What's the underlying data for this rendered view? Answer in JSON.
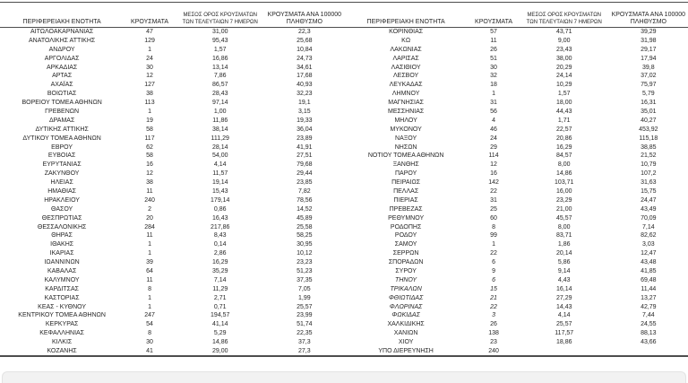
{
  "columns": {
    "region": "ΠΕΡΙΦΕΡΕΙΑΚΗ ΕΝΟΤΗΤΑ",
    "cases": "ΚΡΟΥΣΜΑΤΑ",
    "avg7_line1": "ΜΕΣΟΣ ΟΡΟΣ ΚΡΟΥΣΜΑΤΩΝ",
    "avg7_line2": "ΤΩΝ ΤΕΛΕΥΤΑΙΩΝ 7 ΗΜΕΡΩΝ",
    "per100k_line1": "ΚΡΟΥΣΜΑΤΑ ΑΝΑ 100000",
    "per100k_line2": "ΠΛΗΘΥΣΜΟ"
  },
  "left_table": {
    "rows": [
      {
        "region": "ΑΙΤΩΛΟΑΚΑΡΝΑΝΙΑΣ",
        "cases": "47",
        "avg7": "31,00",
        "per100k": "22,3"
      },
      {
        "region": "ΑΝΑΤΟΛΙΚΗΣ ΑΤΤΙΚΗΣ",
        "cases": "129",
        "avg7": "95,43",
        "per100k": "25,68"
      },
      {
        "region": "ΑΝΔΡΟΥ",
        "cases": "1",
        "avg7": "1,57",
        "per100k": "10,84"
      },
      {
        "region": "ΑΡΓΟΛΙΔΑΣ",
        "cases": "24",
        "avg7": "16,86",
        "per100k": "24,73"
      },
      {
        "region": "ΑΡΚΑΔΙΑΣ",
        "cases": "30",
        "avg7": "13,14",
        "per100k": "34,61"
      },
      {
        "region": "ΑΡΤΑΣ",
        "cases": "12",
        "avg7": "7,86",
        "per100k": "17,68"
      },
      {
        "region": "ΑΧΑΪΑΣ",
        "cases": "127",
        "avg7": "86,57",
        "per100k": "40,93"
      },
      {
        "region": "ΒΟΙΩΤΙΑΣ",
        "cases": "38",
        "avg7": "28,43",
        "per100k": "32,23"
      },
      {
        "region": "ΒΟΡΕΙΟΥ ΤΟΜΕΑ ΑΘΗΝΩΝ",
        "cases": "113",
        "avg7": "97,14",
        "per100k": "19,1"
      },
      {
        "region": "ΓΡΕΒΕΝΩΝ",
        "cases": "1",
        "avg7": "1,00",
        "per100k": "3,15"
      },
      {
        "region": "ΔΡΑΜΑΣ",
        "cases": "19",
        "avg7": "11,86",
        "per100k": "19,33"
      },
      {
        "region": "ΔΥΤΙΚΗΣ ΑΤΤΙΚΗΣ",
        "cases": "58",
        "avg7": "38,14",
        "per100k": "36,04"
      },
      {
        "region": "ΔΥΤΙΚΟΥ ΤΟΜΕΑ ΑΘΗΝΩΝ",
        "cases": "117",
        "avg7": "111,29",
        "per100k": "23,89"
      },
      {
        "region": "ΕΒΡΟΥ",
        "cases": "62",
        "avg7": "28,14",
        "per100k": "41,91"
      },
      {
        "region": "ΕΥΒΟΙΑΣ",
        "cases": "58",
        "avg7": "54,00",
        "per100k": "27,51"
      },
      {
        "region": "ΕΥΡΥΤΑΝΙΑΣ",
        "cases": "16",
        "avg7": "4,14",
        "per100k": "79,68"
      },
      {
        "region": "ΖΑΚΥΝΘΟΥ",
        "cases": "12",
        "avg7": "11,57",
        "per100k": "29,44"
      },
      {
        "region": "ΗΛΕΙΑΣ",
        "cases": "38",
        "avg7": "19,14",
        "per100k": "23,85"
      },
      {
        "region": "ΗΜΑΘΙΑΣ",
        "cases": "11",
        "avg7": "15,43",
        "per100k": "7,82"
      },
      {
        "region": "ΗΡΑΚΛΕΙΟΥ",
        "cases": "240",
        "avg7": "179,14",
        "per100k": "78,56"
      },
      {
        "region": "ΘΑΣΟΥ",
        "cases": "2",
        "avg7": "0,86",
        "per100k": "14,52"
      },
      {
        "region": "ΘΕΣΠΡΩΤΙΑΣ",
        "cases": "20",
        "avg7": "16,43",
        "per100k": "45,89"
      },
      {
        "region": "ΘΕΣΣΑΛΟΝΙΚΗΣ",
        "cases": "284",
        "avg7": "217,86",
        "per100k": "25,58"
      },
      {
        "region": "ΘΗΡΑΣ",
        "cases": "11",
        "avg7": "8,43",
        "per100k": "58,25"
      },
      {
        "region": "ΙΘΑΚΗΣ",
        "cases": "1",
        "avg7": "0,14",
        "per100k": "30,95"
      },
      {
        "region": "ΙΚΑΡΙΑΣ",
        "cases": "1",
        "avg7": "2,86",
        "per100k": "10,12"
      },
      {
        "region": "ΙΩΑΝΝΙΝΩΝ",
        "cases": "39",
        "avg7": "16,29",
        "per100k": "23,23"
      },
      {
        "region": "ΚΑΒΑΛΑΣ",
        "cases": "64",
        "avg7": "35,29",
        "per100k": "51,23"
      },
      {
        "region": "ΚΑΛΥΜΝΟΥ",
        "cases": "11",
        "avg7": "7,14",
        "per100k": "37,35"
      },
      {
        "region": "ΚΑΡΔΙΤΣΑΣ",
        "cases": "8",
        "avg7": "11,29",
        "per100k": "7,05"
      },
      {
        "region": "ΚΑΣΤΟΡΙΑΣ",
        "cases": "1",
        "avg7": "2,71",
        "per100k": "1,99"
      },
      {
        "region": "ΚΕΑΣ - ΚΥΘΝΟΥ",
        "cases": "1",
        "avg7": "0,71",
        "per100k": "25,57"
      },
      {
        "region": "ΚΕΝΤΡΙΚΟΥ ΤΟΜΕΑ ΑΘΗΝΩΝ",
        "cases": "247",
        "avg7": "194,57",
        "per100k": "23,99"
      },
      {
        "region": "ΚΕΡΚΥΡΑΣ",
        "cases": "54",
        "avg7": "41,14",
        "per100k": "51,74"
      },
      {
        "region": "ΚΕΦΑΛΛΗΝΙΑΣ",
        "cases": "8",
        "avg7": "5,29",
        "per100k": "22,35"
      },
      {
        "region": "ΚΙΛΚΙΣ",
        "cases": "30",
        "avg7": "14,86",
        "per100k": "37,3"
      },
      {
        "region": "ΚΟΖΑΝΗΣ",
        "cases": "41",
        "avg7": "29,00",
        "per100k": "27,3"
      }
    ]
  },
  "right_table": {
    "rows": [
      {
        "region": "ΚΟΡΙΝΘΙΑΣ",
        "cases": "57",
        "avg7": "43,71",
        "per100k": "39,29"
      },
      {
        "region": "ΚΩ",
        "cases": "11",
        "avg7": "9,00",
        "per100k": "31,98"
      },
      {
        "region": "ΛΑΚΩΝΙΑΣ",
        "cases": "26",
        "avg7": "23,43",
        "per100k": "29,17"
      },
      {
        "region": "ΛΑΡΙΣΑΣ",
        "cases": "51",
        "avg7": "38,00",
        "per100k": "17,94"
      },
      {
        "region": "ΛΑΣΙΘΙΟΥ",
        "cases": "30",
        "avg7": "20,29",
        "per100k": "39,8"
      },
      {
        "region": "ΛΕΣΒΟΥ",
        "cases": "32",
        "avg7": "24,14",
        "per100k": "37,02"
      },
      {
        "region": "ΛΕΥΚΑΔΑΣ",
        "cases": "18",
        "avg7": "10,29",
        "per100k": "75,97"
      },
      {
        "region": "ΛΗΜΝΟΥ",
        "cases": "1",
        "avg7": "1,57",
        "per100k": "5,79"
      },
      {
        "region": "ΜΑΓΝΗΣΙΑΣ",
        "cases": "31",
        "avg7": "18,00",
        "per100k": "16,31"
      },
      {
        "region": "ΜΕΣΣΗΝΙΑΣ",
        "cases": "56",
        "avg7": "44,43",
        "per100k": "35,01"
      },
      {
        "region": "ΜΗΛΟΥ",
        "cases": "4",
        "avg7": "1,71",
        "per100k": "40,27"
      },
      {
        "region": "ΜΥΚΟΝΟΥ",
        "cases": "46",
        "avg7": "22,57",
        "per100k": "453,92"
      },
      {
        "region": "ΝΑΞΟΥ",
        "cases": "24",
        "avg7": "20,86",
        "per100k": "115,18"
      },
      {
        "region": "ΝΗΣΩΝ",
        "cases": "29",
        "avg7": "16,29",
        "per100k": "38,85"
      },
      {
        "region": "ΝΟΤΙΟΥ ΤΟΜΕΑ ΑΘΗΝΩΝ",
        "cases": "114",
        "avg7": "84,57",
        "per100k": "21,52"
      },
      {
        "region": "ΞΑΝΘΗΣ",
        "cases": "12",
        "avg7": "8,00",
        "per100k": "10,79"
      },
      {
        "region": "ΠΑΡΟΥ",
        "cases": "16",
        "avg7": "14,86",
        "per100k": "107,2"
      },
      {
        "region": "ΠΕΙΡΑΙΩΣ",
        "cases": "142",
        "avg7": "103,71",
        "per100k": "31,63"
      },
      {
        "region": "ΠΕΛΛΑΣ",
        "cases": "22",
        "avg7": "16,00",
        "per100k": "15,75"
      },
      {
        "region": "ΠΙΕΡΙΑΣ",
        "cases": "31",
        "avg7": "23,29",
        "per100k": "24,47"
      },
      {
        "region": "ΠΡΕΒΕΖΑΣ",
        "cases": "25",
        "avg7": "21,00",
        "per100k": "43,49"
      },
      {
        "region": "ΡΕΘΥΜΝΟΥ",
        "cases": "60",
        "avg7": "45,57",
        "per100k": "70,09"
      },
      {
        "region": "ΡΟΔΟΠΗΣ",
        "cases": "8",
        "avg7": "8,00",
        "per100k": "7,14"
      },
      {
        "region": "ΡΟΔΟΥ",
        "cases": "99",
        "avg7": "83,71",
        "per100k": "82,62"
      },
      {
        "region": "ΣΑΜΟΥ",
        "cases": "1",
        "avg7": "1,86",
        "per100k": "3,03"
      },
      {
        "region": "ΣΕΡΡΩΝ",
        "cases": "22",
        "avg7": "20,14",
        "per100k": "12,47"
      },
      {
        "region": "ΣΠΟΡΑΔΩΝ",
        "cases": "6",
        "avg7": "5,86",
        "per100k": "43,48"
      },
      {
        "region": "ΣΥΡΟΥ",
        "cases": "9",
        "avg7": "9,14",
        "per100k": "41,85"
      },
      {
        "region": "ΤΗΝΟΥ",
        "cases": "6",
        "avg7": "4,43",
        "per100k": "69,48",
        "italic": true
      },
      {
        "region": "ΤΡΙΚΑΛΩΝ",
        "cases": "15",
        "avg7": "16,14",
        "per100k": "11,44",
        "italic": true
      },
      {
        "region": "ΦΘΙΩΤΙΔΑΣ",
        "cases": "21",
        "avg7": "27,29",
        "per100k": "13,27",
        "italic": true
      },
      {
        "region": "ΦΛΩΡΙΝΑΣ",
        "cases": "22",
        "avg7": "14,43",
        "per100k": "42,79",
        "italic": true
      },
      {
        "region": "ΦΩΚΙΔΑΣ",
        "cases": "3",
        "avg7": "4,14",
        "per100k": "7,44",
        "italic": true
      },
      {
        "region": "ΧΑΛΚΙΔΙΚΗΣ",
        "cases": "26",
        "avg7": "25,57",
        "per100k": "24,55"
      },
      {
        "region": "ΧΑΝΙΩΝ",
        "cases": "138",
        "avg7": "117,57",
        "per100k": "88,13"
      },
      {
        "region": "ΧΙΟΥ",
        "cases": "23",
        "avg7": "18,86",
        "per100k": "43,66"
      },
      {
        "region": "ΥΠΟ ΔΙΕΡΕΥΝΗΣΗ",
        "cases": "240",
        "avg7": "",
        "per100k": ""
      }
    ]
  }
}
